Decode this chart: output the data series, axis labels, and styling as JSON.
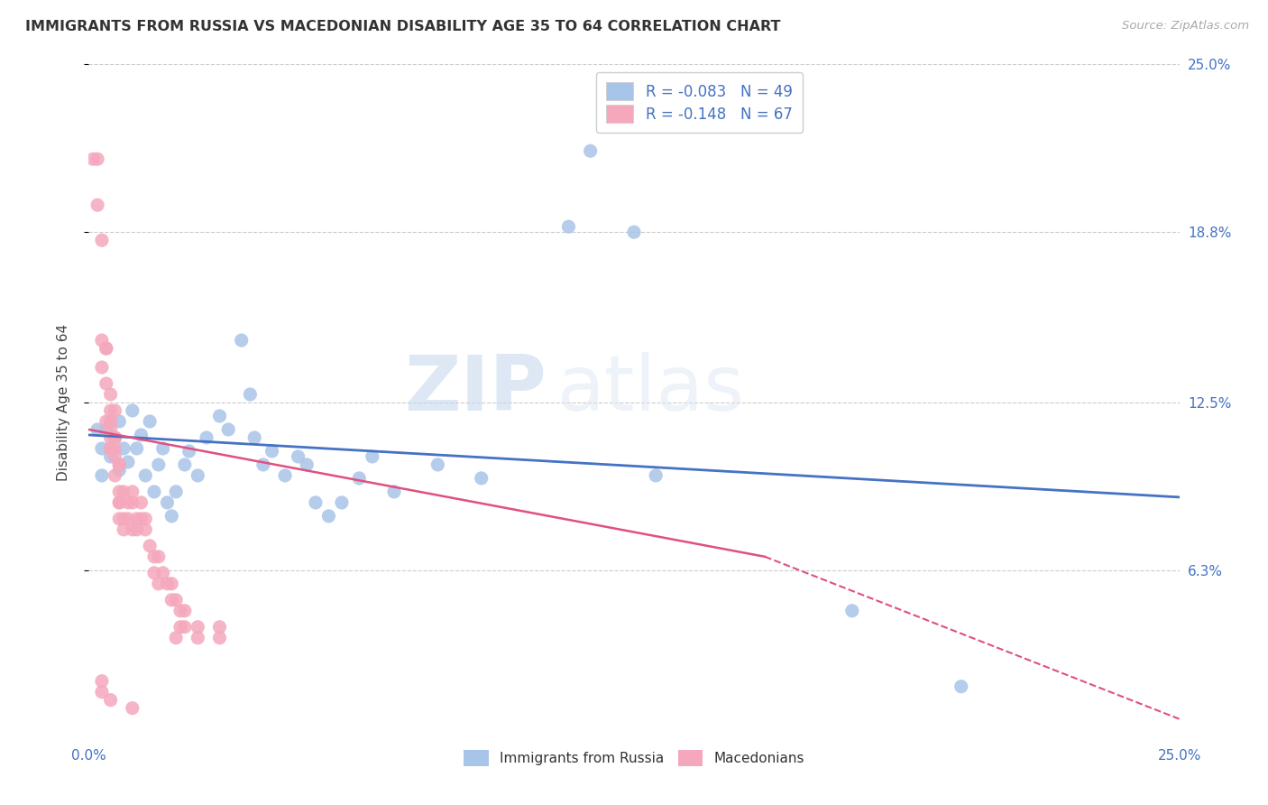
{
  "title": "IMMIGRANTS FROM RUSSIA VS MACEDONIAN DISABILITY AGE 35 TO 64 CORRELATION CHART",
  "source": "Source: ZipAtlas.com",
  "ylabel": "Disability Age 35 to 64",
  "ytick_labels": [
    "25.0%",
    "18.8%",
    "12.5%",
    "6.3%"
  ],
  "ytick_values": [
    0.25,
    0.188,
    0.125,
    0.063
  ],
  "xmin": 0.0,
  "xmax": 0.25,
  "ymin": 0.0,
  "ymax": 0.25,
  "legend_label1": "Immigrants from Russia",
  "legend_label2": "Macedonians",
  "R1": -0.083,
  "N1": 49,
  "R2": -0.148,
  "N2": 67,
  "color_blue": "#a8c4e8",
  "color_pink": "#f5a8bc",
  "color_blue_line": "#4472c4",
  "color_pink_line": "#e05080",
  "color_title": "#333333",
  "color_axis_labels": "#4472c4",
  "watermark_zip": "ZIP",
  "watermark_atlas": "atlas",
  "blue_points": [
    [
      0.002,
      0.115
    ],
    [
      0.003,
      0.108
    ],
    [
      0.003,
      0.098
    ],
    [
      0.004,
      0.115
    ],
    [
      0.005,
      0.105
    ],
    [
      0.006,
      0.112
    ],
    [
      0.007,
      0.1
    ],
    [
      0.007,
      0.118
    ],
    [
      0.008,
      0.108
    ],
    [
      0.009,
      0.103
    ],
    [
      0.01,
      0.122
    ],
    [
      0.011,
      0.108
    ],
    [
      0.012,
      0.113
    ],
    [
      0.013,
      0.098
    ],
    [
      0.014,
      0.118
    ],
    [
      0.015,
      0.092
    ],
    [
      0.016,
      0.102
    ],
    [
      0.017,
      0.108
    ],
    [
      0.018,
      0.088
    ],
    [
      0.019,
      0.083
    ],
    [
      0.02,
      0.092
    ],
    [
      0.022,
      0.102
    ],
    [
      0.023,
      0.107
    ],
    [
      0.025,
      0.098
    ],
    [
      0.027,
      0.112
    ],
    [
      0.03,
      0.12
    ],
    [
      0.032,
      0.115
    ],
    [
      0.035,
      0.148
    ],
    [
      0.037,
      0.128
    ],
    [
      0.038,
      0.112
    ],
    [
      0.04,
      0.102
    ],
    [
      0.042,
      0.107
    ],
    [
      0.045,
      0.098
    ],
    [
      0.048,
      0.105
    ],
    [
      0.05,
      0.102
    ],
    [
      0.052,
      0.088
    ],
    [
      0.055,
      0.083
    ],
    [
      0.058,
      0.088
    ],
    [
      0.062,
      0.097
    ],
    [
      0.065,
      0.105
    ],
    [
      0.07,
      0.092
    ],
    [
      0.08,
      0.102
    ],
    [
      0.09,
      0.097
    ],
    [
      0.11,
      0.19
    ],
    [
      0.115,
      0.218
    ],
    [
      0.125,
      0.188
    ],
    [
      0.13,
      0.098
    ],
    [
      0.175,
      0.048
    ],
    [
      0.2,
      0.02
    ]
  ],
  "pink_points": [
    [
      0.001,
      0.215
    ],
    [
      0.002,
      0.215
    ],
    [
      0.002,
      0.198
    ],
    [
      0.003,
      0.185
    ],
    [
      0.003,
      0.148
    ],
    [
      0.003,
      0.138
    ],
    [
      0.004,
      0.145
    ],
    [
      0.004,
      0.132
    ],
    [
      0.004,
      0.145
    ],
    [
      0.004,
      0.118
    ],
    [
      0.005,
      0.128
    ],
    [
      0.005,
      0.122
    ],
    [
      0.005,
      0.118
    ],
    [
      0.005,
      0.112
    ],
    [
      0.005,
      0.108
    ],
    [
      0.005,
      0.115
    ],
    [
      0.005,
      0.108
    ],
    [
      0.005,
      0.118
    ],
    [
      0.006,
      0.122
    ],
    [
      0.006,
      0.112
    ],
    [
      0.006,
      0.105
    ],
    [
      0.006,
      0.112
    ],
    [
      0.006,
      0.098
    ],
    [
      0.006,
      0.108
    ],
    [
      0.007,
      0.102
    ],
    [
      0.007,
      0.088
    ],
    [
      0.007,
      0.092
    ],
    [
      0.007,
      0.082
    ],
    [
      0.007,
      0.102
    ],
    [
      0.007,
      0.088
    ],
    [
      0.008,
      0.092
    ],
    [
      0.008,
      0.078
    ],
    [
      0.008,
      0.082
    ],
    [
      0.009,
      0.088
    ],
    [
      0.009,
      0.082
    ],
    [
      0.01,
      0.092
    ],
    [
      0.01,
      0.088
    ],
    [
      0.01,
      0.078
    ],
    [
      0.011,
      0.082
    ],
    [
      0.011,
      0.078
    ],
    [
      0.012,
      0.088
    ],
    [
      0.012,
      0.082
    ],
    [
      0.013,
      0.078
    ],
    [
      0.013,
      0.082
    ],
    [
      0.014,
      0.072
    ],
    [
      0.015,
      0.068
    ],
    [
      0.015,
      0.062
    ],
    [
      0.016,
      0.068
    ],
    [
      0.016,
      0.058
    ],
    [
      0.017,
      0.062
    ],
    [
      0.018,
      0.058
    ],
    [
      0.019,
      0.052
    ],
    [
      0.019,
      0.058
    ],
    [
      0.02,
      0.052
    ],
    [
      0.021,
      0.048
    ],
    [
      0.021,
      0.042
    ],
    [
      0.022,
      0.048
    ],
    [
      0.022,
      0.042
    ],
    [
      0.025,
      0.038
    ],
    [
      0.025,
      0.042
    ],
    [
      0.03,
      0.038
    ],
    [
      0.03,
      0.042
    ],
    [
      0.003,
      0.022
    ],
    [
      0.003,
      0.018
    ],
    [
      0.005,
      0.015
    ],
    [
      0.01,
      0.012
    ],
    [
      0.02,
      0.038
    ]
  ]
}
